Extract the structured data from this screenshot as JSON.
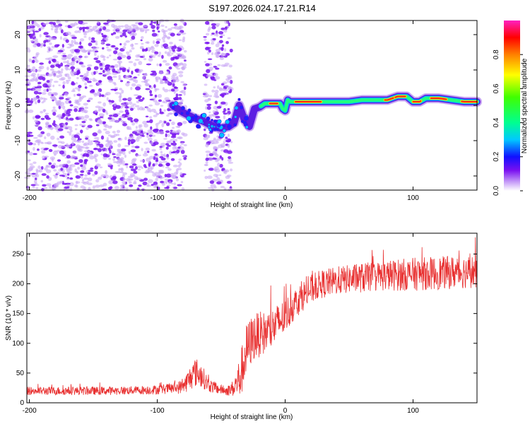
{
  "title": "S197.2026.024.17.21.R14",
  "colors": {
    "snr_line": "#e83030",
    "scatter_purple": "#7a18f0",
    "scatter_light": "#c9a8f5"
  },
  "chart_data": [
    {
      "type": "heatmap",
      "xlabel": "Height of straight line (km)",
      "ylabel": "Frequency (Hz)",
      "xlim": [
        -202,
        150
      ],
      "ylim": [
        -24,
        24
      ],
      "xticks": [
        -200,
        -100,
        0,
        100
      ],
      "xtick_labels": [
        "-200",
        "-100",
        "0",
        "100"
      ],
      "yticks": [
        -20,
        -10,
        0,
        10,
        20
      ],
      "ytick_labels": [
        "-20",
        "-10",
        "0",
        "10",
        "20"
      ],
      "noise_region_km": [
        [
          -202,
          -78
        ],
        [
          -63,
          -42
        ]
      ],
      "ridge": {
        "description": "frequency vs height of the dominant spectral line",
        "x": [
          -88,
          -80,
          -72,
          -64,
          -56,
          -50,
          -44,
          -40,
          -36,
          -32,
          -28,
          -24,
          -20,
          -16,
          -12,
          -8,
          -4,
          -2,
          0,
          2,
          4,
          10,
          20,
          30,
          40,
          50,
          60,
          70,
          80,
          88,
          95,
          100,
          105,
          110,
          120,
          130,
          140,
          150
        ],
        "y": [
          0,
          -2,
          -3.5,
          -4.5,
          -6,
          -6.5,
          -6,
          -5,
          0,
          -4,
          -6,
          -1,
          -0.5,
          0.5,
          0.5,
          0.5,
          0.5,
          -1,
          -1.5,
          1.5,
          1,
          1,
          1,
          1,
          1,
          1,
          1.5,
          1.5,
          1.5,
          2.5,
          2.5,
          1,
          1,
          2,
          2,
          1.5,
          1,
          1
        ]
      },
      "colorbar": {
        "label": "Normalized spectral amplitude",
        "range": [
          0,
          1
        ],
        "ticks": [
          0,
          0.2,
          0.4,
          0.6,
          0.8
        ],
        "tick_labels": [
          "0.0",
          "0.2",
          "0.4",
          "0.6",
          "0.8"
        ]
      }
    },
    {
      "type": "line",
      "xlabel": "Height of straight line (km)",
      "ylabel": "SNR (10 * v/v)",
      "xlim": [
        -202,
        150
      ],
      "ylim": [
        0,
        285
      ],
      "xticks": [
        -200,
        -100,
        0,
        100
      ],
      "xtick_labels": [
        "-200",
        "-100",
        "0",
        "100"
      ],
      "yticks": [
        0,
        50,
        100,
        150,
        200,
        250
      ],
      "ytick_labels": [
        "0",
        "50",
        "100",
        "150",
        "200",
        "250"
      ],
      "series": [
        {
          "name": "SNR",
          "envelope_x": [
            -202,
            -180,
            -160,
            -140,
            -120,
            -100,
            -90,
            -80,
            -75,
            -70,
            -65,
            -60,
            -55,
            -50,
            -45,
            -40,
            -35,
            -30,
            -25,
            -20,
            -15,
            -10,
            -5,
            0,
            5,
            10,
            15,
            20,
            25,
            30,
            40,
            50,
            60,
            70,
            80,
            90,
            100,
            110,
            120,
            130,
            140,
            150
          ],
          "envelope_mean": [
            20,
            20,
            20,
            20,
            21,
            22,
            24,
            27,
            40,
            52,
            45,
            30,
            25,
            22,
            20,
            25,
            45,
            90,
            110,
            115,
            118,
            125,
            135,
            145,
            160,
            172,
            182,
            190,
            197,
            200,
            205,
            208,
            210,
            212,
            214,
            215,
            216,
            217,
            218,
            219,
            220,
            221
          ],
          "envelope_amplitude": [
            7,
            7,
            7,
            7,
            7,
            8,
            9,
            12,
            20,
            25,
            20,
            12,
            10,
            8,
            8,
            15,
            40,
            45,
            40,
            38,
            36,
            35,
            33,
            30,
            28,
            26,
            25,
            25,
            24,
            24,
            24,
            24,
            25,
            25,
            26,
            27,
            28,
            28,
            28,
            28,
            28,
            28
          ]
        }
      ]
    }
  ]
}
